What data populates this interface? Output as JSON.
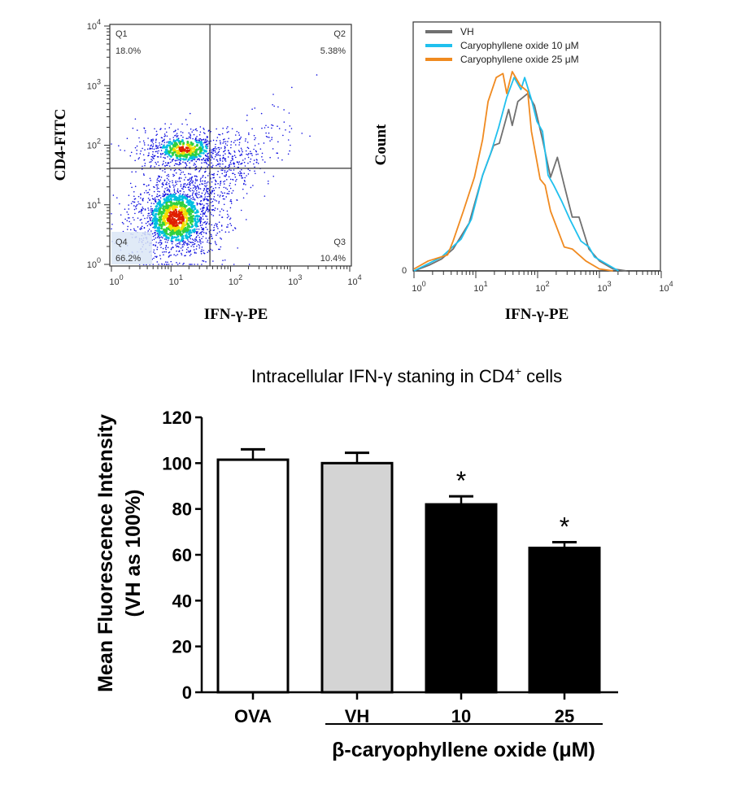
{
  "chart_data": [
    {
      "type": "scatter",
      "xlabel": "IFN-γ-PE",
      "ylabel": "CD4-FITC",
      "x_scale": "log",
      "y_scale": "log",
      "xlim": [
        1,
        10000
      ],
      "ylim": [
        1,
        10000
      ],
      "x_ticks": [
        1,
        10,
        100,
        1000,
        10000
      ],
      "y_ticks": [
        1,
        10,
        100,
        1000,
        10000
      ],
      "gate": {
        "x": 45,
        "y": 41
      },
      "quadrants": [
        {
          "name": "Q1",
          "percent": "18.0%"
        },
        {
          "name": "Q2",
          "percent": "5.38%"
        },
        {
          "name": "Q3",
          "percent": "10.4%"
        },
        {
          "name": "Q4",
          "percent": "66.2%"
        }
      ],
      "populations": [
        {
          "x": 12,
          "y": 6
        },
        {
          "x": 17,
          "y": 85
        }
      ],
      "density_colors": [
        "#1010e0",
        "#00c0e0",
        "#30d040",
        "#f0e000",
        "#e02000"
      ]
    },
    {
      "type": "line",
      "xlabel": "IFN-γ-PE",
      "ylabel": "Count",
      "x_scale": "log",
      "xlim": [
        1,
        10000
      ],
      "x_ticks": [
        1,
        10,
        100,
        1000,
        10000
      ],
      "y_ticks": [
        "0"
      ],
      "legend_position": "top-left",
      "series": [
        {
          "name": "VH",
          "color": "#707070",
          "x": [
            1,
            1.8,
            2.8,
            4.3,
            7.8,
            12.9,
            19.5,
            24,
            34,
            38.9,
            47.9,
            69,
            89,
            120,
            162,
            209,
            269,
            363,
            468,
            676,
            1000,
            1660,
            2750
          ],
          "y": [
            0,
            3,
            6,
            11,
            24,
            48,
            63,
            64,
            81,
            73,
            85,
            89,
            83,
            66,
            47,
            57,
            43,
            27,
            27,
            11,
            5,
            1,
            0
          ]
        },
        {
          "name": "Caryophyllene oxide 10 μM",
          "color": "#20c0ee",
          "x": [
            1,
            2.8,
            5.8,
            8.5,
            12.9,
            17.4,
            23.4,
            31.6,
            41.7,
            53.7,
            61.7,
            79.4,
            97.7,
            120,
            148,
            182,
            245,
            331,
            501,
            676,
            832,
            1380,
            2040
          ],
          "y": [
            0,
            7,
            16,
            26,
            48,
            59,
            72,
            87,
            97,
            91,
            97,
            86,
            75,
            70,
            48,
            43,
            35,
            26,
            15,
            12,
            7,
            3,
            0
          ]
        },
        {
          "name": "Caryophyllene oxide 25 μM",
          "color": "#f08a20",
          "x": [
            1,
            1.7,
            3.5,
            4.3,
            6.3,
            9.5,
            12.9,
            15.8,
            21.4,
            27.5,
            31.6,
            38.9,
            52.5,
            69,
            79.4,
            110,
            132,
            162,
            269,
            363,
            603,
            1000,
            1660
          ],
          "y": [
            1,
            5,
            8,
            15,
            30,
            47,
            66,
            85,
            97,
            99,
            89,
            100,
            93,
            90,
            70,
            46,
            43,
            30,
            12,
            11,
            5,
            1,
            0
          ]
        }
      ]
    },
    {
      "type": "bar",
      "title": "Intracellular IFN-γ staning in CD4",
      "title_sup": "+",
      "title_end": " cells",
      "ylabel": [
        "Mean Fluorescence Intensity",
        "(VH as 100%)"
      ],
      "xlabel": "β-caryophyllene oxide (μM)",
      "ylim": [
        0,
        120
      ],
      "y_ticks": [
        0,
        20,
        40,
        60,
        80,
        100,
        120
      ],
      "categories": [
        "OVA",
        "VH",
        "10",
        "25"
      ],
      "values": [
        101.5,
        100,
        82,
        63
      ],
      "errors": [
        4.5,
        4.5,
        3.5,
        2.5
      ],
      "fills": [
        "#ffffff",
        "#d4d4d4",
        "#000000",
        "#000000"
      ],
      "annotations": [
        "",
        "",
        "*",
        "*"
      ]
    }
  ]
}
